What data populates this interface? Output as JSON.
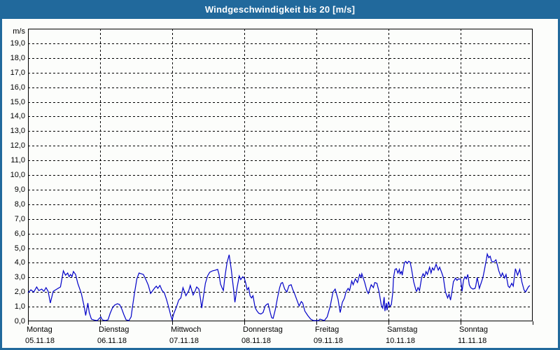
{
  "title": "Windgeschwindigkeit bis 20 [m/s]",
  "colors": {
    "header_bg": "#21699c",
    "frame": "#21699c",
    "plot_bg": "#fcfdfb",
    "grid": "#000000",
    "axis": "#000000",
    "line": "#0000c8",
    "title_text": "#ffffff",
    "label_text": "#000000"
  },
  "y_axis": {
    "unit_label": "m/s",
    "tick_labels": [
      "19,0",
      "18,0",
      "17,0",
      "16,0",
      "15,0",
      "14,0",
      "13,0",
      "12,0",
      "11,0",
      "10,0",
      "9,0",
      "8,0",
      "7,0",
      "6,0",
      "5,0",
      "4,0",
      "3,0",
      "2,0",
      "1,0",
      "0,0"
    ],
    "min": 0,
    "max": 20
  },
  "x_axis": {
    "days": [
      {
        "name": "Montag",
        "date": "05.11.18"
      },
      {
        "name": "Dienstag",
        "date": "06.11.18"
      },
      {
        "name": "Mittwoch",
        "date": "07.11.18"
      },
      {
        "name": "Donnerstag",
        "date": "08.11.18"
      },
      {
        "name": "Freitag",
        "date": "09.11.18"
      },
      {
        "name": "Samstag",
        "date": "10.11.18"
      },
      {
        "name": "Sonntag",
        "date": "11.11.18"
      }
    ]
  },
  "chart_data": {
    "type": "line",
    "title": "Windgeschwindigkeit bis 20 [m/s]",
    "xlabel": "",
    "ylabel": "m/s",
    "ylim": [
      0,
      20
    ],
    "xlim_days": [
      0,
      7
    ],
    "grid": "dashed",
    "legend": "none",
    "x_unit": "days since Monday 05.11.18 00:00",
    "series": [
      {
        "name": "Windgeschwindigkeit",
        "color": "#0000c8",
        "points": [
          [
            0.0,
            1.95
          ],
          [
            0.04,
            2.15
          ],
          [
            0.08,
            2.0
          ],
          [
            0.12,
            2.35
          ],
          [
            0.15,
            2.1
          ],
          [
            0.19,
            2.2
          ],
          [
            0.22,
            2.05
          ],
          [
            0.25,
            2.3
          ],
          [
            0.28,
            2.05
          ],
          [
            0.31,
            1.25
          ],
          [
            0.35,
            2.05
          ],
          [
            0.4,
            2.2
          ],
          [
            0.45,
            2.35
          ],
          [
            0.49,
            3.45
          ],
          [
            0.52,
            3.15
          ],
          [
            0.55,
            3.3
          ],
          [
            0.57,
            3.05
          ],
          [
            0.59,
            3.2
          ],
          [
            0.61,
            3.05
          ],
          [
            0.63,
            3.4
          ],
          [
            0.66,
            3.2
          ],
          [
            0.69,
            2.6
          ],
          [
            0.74,
            1.9
          ],
          [
            0.78,
            1.0
          ],
          [
            0.8,
            0.4
          ],
          [
            0.83,
            1.25
          ],
          [
            0.85,
            0.6
          ],
          [
            0.88,
            0.15
          ],
          [
            0.92,
            0.08
          ],
          [
            0.96,
            0.05
          ],
          [
            1.01,
            0.3
          ],
          [
            1.03,
            0.1
          ],
          [
            1.07,
            0.05
          ],
          [
            1.11,
            0.1
          ],
          [
            1.14,
            0.55
          ],
          [
            1.17,
            0.9
          ],
          [
            1.2,
            1.1
          ],
          [
            1.24,
            1.2
          ],
          [
            1.27,
            1.15
          ],
          [
            1.3,
            0.85
          ],
          [
            1.33,
            0.45
          ],
          [
            1.36,
            0.1
          ],
          [
            1.4,
            0.05
          ],
          [
            1.43,
            0.3
          ],
          [
            1.45,
            1.0
          ],
          [
            1.48,
            2.0
          ],
          [
            1.51,
            2.9
          ],
          [
            1.54,
            3.3
          ],
          [
            1.57,
            3.25
          ],
          [
            1.6,
            3.2
          ],
          [
            1.64,
            2.8
          ],
          [
            1.67,
            2.45
          ],
          [
            1.7,
            1.9
          ],
          [
            1.73,
            2.1
          ],
          [
            1.76,
            2.3
          ],
          [
            1.78,
            2.4
          ],
          [
            1.8,
            2.25
          ],
          [
            1.83,
            2.45
          ],
          [
            1.86,
            2.1
          ],
          [
            1.89,
            1.95
          ],
          [
            1.92,
            1.5
          ],
          [
            1.95,
            1.0
          ],
          [
            1.98,
            0.4
          ],
          [
            2.0,
            0.1
          ],
          [
            2.02,
            0.5
          ],
          [
            2.06,
            1.0
          ],
          [
            2.09,
            1.45
          ],
          [
            2.12,
            1.6
          ],
          [
            2.15,
            2.3
          ],
          [
            2.19,
            1.75
          ],
          [
            2.23,
            2.1
          ],
          [
            2.25,
            2.45
          ],
          [
            2.29,
            1.8
          ],
          [
            2.32,
            2.1
          ],
          [
            2.34,
            2.35
          ],
          [
            2.37,
            2.2
          ],
          [
            2.39,
            1.6
          ],
          [
            2.41,
            0.9
          ],
          [
            2.43,
            1.6
          ],
          [
            2.46,
            2.6
          ],
          [
            2.49,
            3.1
          ],
          [
            2.52,
            3.35
          ],
          [
            2.56,
            3.45
          ],
          [
            2.6,
            3.5
          ],
          [
            2.63,
            3.55
          ],
          [
            2.65,
            3.2
          ],
          [
            2.67,
            2.55
          ],
          [
            2.69,
            2.3
          ],
          [
            2.71,
            2.1
          ],
          [
            2.73,
            3.0
          ],
          [
            2.76,
            4.0
          ],
          [
            2.79,
            4.55
          ],
          [
            2.82,
            3.5
          ],
          [
            2.85,
            2.2
          ],
          [
            2.87,
            1.3
          ],
          [
            2.9,
            2.3
          ],
          [
            2.93,
            3.1
          ],
          [
            2.95,
            2.85
          ],
          [
            2.98,
            3.05
          ],
          [
            3.0,
            2.95
          ],
          [
            3.02,
            2.6
          ],
          [
            3.04,
            2.15
          ],
          [
            3.06,
            2.3
          ],
          [
            3.08,
            1.75
          ],
          [
            3.1,
            1.6
          ],
          [
            3.12,
            1.75
          ],
          [
            3.15,
            0.95
          ],
          [
            3.17,
            0.75
          ],
          [
            3.2,
            0.55
          ],
          [
            3.23,
            0.5
          ],
          [
            3.26,
            0.6
          ],
          [
            3.29,
            1.05
          ],
          [
            3.31,
            1.15
          ],
          [
            3.33,
            1.2
          ],
          [
            3.36,
            0.6
          ],
          [
            3.38,
            0.25
          ],
          [
            3.4,
            0.2
          ],
          [
            3.43,
            0.8
          ],
          [
            3.46,
            1.6
          ],
          [
            3.49,
            2.3
          ],
          [
            3.51,
            2.6
          ],
          [
            3.53,
            2.65
          ],
          [
            3.56,
            2.2
          ],
          [
            3.59,
            2.0
          ],
          [
            3.62,
            2.45
          ],
          [
            3.65,
            2.5
          ],
          [
            3.67,
            2.2
          ],
          [
            3.7,
            1.85
          ],
          [
            3.73,
            1.45
          ],
          [
            3.76,
            1.05
          ],
          [
            3.79,
            1.35
          ],
          [
            3.81,
            1.25
          ],
          [
            3.84,
            0.7
          ],
          [
            3.88,
            0.4
          ],
          [
            3.92,
            0.15
          ],
          [
            3.96,
            0.05
          ],
          [
            4.0,
            0.05
          ],
          [
            4.03,
            0.05
          ],
          [
            4.05,
            0.15
          ],
          [
            4.08,
            0.1
          ],
          [
            4.11,
            0.05
          ],
          [
            4.15,
            0.3
          ],
          [
            4.19,
            1.0
          ],
          [
            4.23,
            2.0
          ],
          [
            4.26,
            2.2
          ],
          [
            4.3,
            1.5
          ],
          [
            4.33,
            0.6
          ],
          [
            4.36,
            1.3
          ],
          [
            4.39,
            1.6
          ],
          [
            4.41,
            2.0
          ],
          [
            4.44,
            2.25
          ],
          [
            4.46,
            2.1
          ],
          [
            4.49,
            2.75
          ],
          [
            4.51,
            2.5
          ],
          [
            4.54,
            2.9
          ],
          [
            4.57,
            2.65
          ],
          [
            4.6,
            3.2
          ],
          [
            4.62,
            3.0
          ],
          [
            4.63,
            3.25
          ],
          [
            4.67,
            2.65
          ],
          [
            4.7,
            2.1
          ],
          [
            4.72,
            1.9
          ],
          [
            4.76,
            2.5
          ],
          [
            4.79,
            2.3
          ],
          [
            4.81,
            2.65
          ],
          [
            4.84,
            2.6
          ],
          [
            4.87,
            2.0
          ],
          [
            4.9,
            1.1
          ],
          [
            4.92,
            0.9
          ],
          [
            4.94,
            1.65
          ],
          [
            4.95,
            0.7
          ],
          [
            4.97,
            1.25
          ],
          [
            4.98,
            0.75
          ],
          [
            5.0,
            1.35
          ],
          [
            5.02,
            1.0
          ],
          [
            5.04,
            1.15
          ],
          [
            5.06,
            2.0
          ],
          [
            5.07,
            3.0
          ],
          [
            5.09,
            3.55
          ],
          [
            5.11,
            3.6
          ],
          [
            5.13,
            3.3
          ],
          [
            5.15,
            3.55
          ],
          [
            5.16,
            3.25
          ],
          [
            5.18,
            3.4
          ],
          [
            5.19,
            3.15
          ],
          [
            5.22,
            4.0
          ],
          [
            5.24,
            4.1
          ],
          [
            5.26,
            3.95
          ],
          [
            5.28,
            4.1
          ],
          [
            5.3,
            4.05
          ],
          [
            5.32,
            3.55
          ],
          [
            5.35,
            2.7
          ],
          [
            5.38,
            2.15
          ],
          [
            5.39,
            2.05
          ],
          [
            5.41,
            2.3
          ],
          [
            5.43,
            2.1
          ],
          [
            5.46,
            3.0
          ],
          [
            5.48,
            3.25
          ],
          [
            5.5,
            3.05
          ],
          [
            5.52,
            3.4
          ],
          [
            5.54,
            3.2
          ],
          [
            5.57,
            3.7
          ],
          [
            5.59,
            3.3
          ],
          [
            5.61,
            3.65
          ],
          [
            5.63,
            3.5
          ],
          [
            5.66,
            3.9
          ],
          [
            5.69,
            3.5
          ],
          [
            5.71,
            3.7
          ],
          [
            5.74,
            3.3
          ],
          [
            5.76,
            3.0
          ],
          [
            5.79,
            2.0
          ],
          [
            5.82,
            1.6
          ],
          [
            5.84,
            1.85
          ],
          [
            5.86,
            1.45
          ],
          [
            5.88,
            2.0
          ],
          [
            5.9,
            2.7
          ],
          [
            5.93,
            2.95
          ],
          [
            5.95,
            2.8
          ],
          [
            5.97,
            2.9
          ],
          [
            6.0,
            2.88
          ],
          [
            6.02,
            2.05
          ],
          [
            6.04,
            2.8
          ],
          [
            6.06,
            3.05
          ],
          [
            6.08,
            2.9
          ],
          [
            6.1,
            3.2
          ],
          [
            6.12,
            2.5
          ],
          [
            6.14,
            2.3
          ],
          [
            6.17,
            2.2
          ],
          [
            6.2,
            2.25
          ],
          [
            6.21,
            2.4
          ],
          [
            6.23,
            3.0
          ],
          [
            6.26,
            2.25
          ],
          [
            6.29,
            2.7
          ],
          [
            6.31,
            3.0
          ],
          [
            6.33,
            3.5
          ],
          [
            6.36,
            4.3
          ],
          [
            6.37,
            4.6
          ],
          [
            6.39,
            4.35
          ],
          [
            6.41,
            4.45
          ],
          [
            6.43,
            4.1
          ],
          [
            6.45,
            4.05
          ],
          [
            6.47,
            4.1
          ],
          [
            6.49,
            4.2
          ],
          [
            6.51,
            3.85
          ],
          [
            6.53,
            3.45
          ],
          [
            6.56,
            3.05
          ],
          [
            6.58,
            3.3
          ],
          [
            6.61,
            2.95
          ],
          [
            6.63,
            3.2
          ],
          [
            6.66,
            2.4
          ],
          [
            6.68,
            2.3
          ],
          [
            6.71,
            2.6
          ],
          [
            6.73,
            2.4
          ],
          [
            6.76,
            3.6
          ],
          [
            6.79,
            3.15
          ],
          [
            6.82,
            3.55
          ],
          [
            6.85,
            2.7
          ],
          [
            6.88,
            2.15
          ],
          [
            6.9,
            2.0
          ],
          [
            6.94,
            2.35
          ],
          [
            6.96,
            2.45
          ]
        ]
      }
    ]
  }
}
